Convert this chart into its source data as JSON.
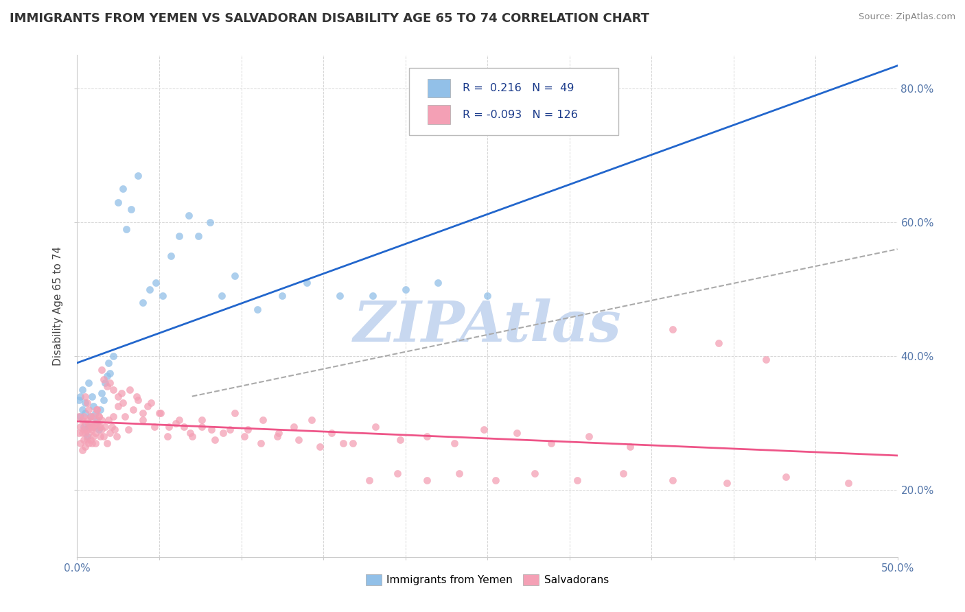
{
  "title": "IMMIGRANTS FROM YEMEN VS SALVADORAN DISABILITY AGE 65 TO 74 CORRELATION CHART",
  "source_text": "Source: ZipAtlas.com",
  "ylabel": "Disability Age 65 to 74",
  "xlim": [
    0.0,
    0.5
  ],
  "ylim": [
    0.1,
    0.85
  ],
  "xtick_positions": [
    0.0,
    0.05,
    0.1,
    0.15,
    0.2,
    0.25,
    0.3,
    0.35,
    0.4,
    0.45,
    0.5
  ],
  "ytick_positions": [
    0.2,
    0.4,
    0.6,
    0.8
  ],
  "legend_blue_r": "0.216",
  "legend_blue_n": "49",
  "legend_pink_r": "-0.093",
  "legend_pink_n": "126",
  "blue_color": "#92C0E8",
  "pink_color": "#F4A0B5",
  "blue_line_color": "#2266CC",
  "pink_line_color": "#EE5588",
  "gray_dash_color": "#AAAAAA",
  "watermark": "ZIPAtlas",
  "watermark_color": "#C8D8F0",
  "tick_color": "#5577AA",
  "grid_color": "#CCCCCC",
  "title_color": "#333333",
  "source_color": "#888888",
  "blue_x": [
    0.001,
    0.002,
    0.002,
    0.003,
    0.003,
    0.004,
    0.005,
    0.005,
    0.006,
    0.007,
    0.007,
    0.008,
    0.009,
    0.01,
    0.011,
    0.012,
    0.013,
    0.014,
    0.015,
    0.016,
    0.017,
    0.018,
    0.019,
    0.02,
    0.022,
    0.025,
    0.028,
    0.03,
    0.033,
    0.037,
    0.04,
    0.044,
    0.048,
    0.052,
    0.057,
    0.062,
    0.068,
    0.074,
    0.081,
    0.088,
    0.096,
    0.11,
    0.125,
    0.14,
    0.16,
    0.18,
    0.2,
    0.22,
    0.25
  ],
  "blue_y": [
    0.335,
    0.31,
    0.34,
    0.32,
    0.35,
    0.295,
    0.315,
    0.33,
    0.28,
    0.295,
    0.36,
    0.31,
    0.34,
    0.325,
    0.315,
    0.305,
    0.29,
    0.32,
    0.345,
    0.335,
    0.36,
    0.37,
    0.39,
    0.375,
    0.4,
    0.63,
    0.65,
    0.59,
    0.62,
    0.67,
    0.48,
    0.5,
    0.51,
    0.49,
    0.55,
    0.58,
    0.61,
    0.58,
    0.6,
    0.49,
    0.52,
    0.47,
    0.49,
    0.51,
    0.49,
    0.49,
    0.5,
    0.51,
    0.49
  ],
  "pink_x": [
    0.001,
    0.001,
    0.002,
    0.002,
    0.003,
    0.003,
    0.003,
    0.004,
    0.004,
    0.004,
    0.005,
    0.005,
    0.005,
    0.006,
    0.006,
    0.006,
    0.007,
    0.007,
    0.007,
    0.008,
    0.008,
    0.009,
    0.009,
    0.01,
    0.01,
    0.011,
    0.011,
    0.012,
    0.012,
    0.013,
    0.013,
    0.014,
    0.015,
    0.015,
    0.016,
    0.017,
    0.018,
    0.019,
    0.02,
    0.021,
    0.022,
    0.023,
    0.024,
    0.025,
    0.027,
    0.029,
    0.031,
    0.034,
    0.037,
    0.04,
    0.043,
    0.047,
    0.051,
    0.055,
    0.06,
    0.065,
    0.07,
    0.076,
    0.082,
    0.089,
    0.096,
    0.104,
    0.113,
    0.122,
    0.132,
    0.143,
    0.155,
    0.168,
    0.182,
    0.197,
    0.213,
    0.23,
    0.248,
    0.268,
    0.289,
    0.312,
    0.337,
    0.363,
    0.391,
    0.42,
    0.005,
    0.006,
    0.007,
    0.008,
    0.009,
    0.01,
    0.011,
    0.012,
    0.013,
    0.014,
    0.015,
    0.016,
    0.018,
    0.02,
    0.022,
    0.025,
    0.028,
    0.032,
    0.036,
    0.04,
    0.045,
    0.05,
    0.056,
    0.062,
    0.069,
    0.076,
    0.084,
    0.093,
    0.102,
    0.112,
    0.123,
    0.135,
    0.148,
    0.162,
    0.178,
    0.195,
    0.213,
    0.233,
    0.255,
    0.279,
    0.305,
    0.333,
    0.363,
    0.396,
    0.432,
    0.47
  ],
  "pink_y": [
    0.285,
    0.31,
    0.27,
    0.295,
    0.26,
    0.285,
    0.305,
    0.275,
    0.29,
    0.31,
    0.265,
    0.285,
    0.3,
    0.275,
    0.29,
    0.305,
    0.27,
    0.285,
    0.3,
    0.275,
    0.295,
    0.27,
    0.29,
    0.28,
    0.295,
    0.27,
    0.285,
    0.3,
    0.32,
    0.31,
    0.295,
    0.28,
    0.305,
    0.29,
    0.28,
    0.295,
    0.27,
    0.305,
    0.285,
    0.295,
    0.31,
    0.29,
    0.28,
    0.325,
    0.345,
    0.31,
    0.29,
    0.32,
    0.335,
    0.305,
    0.325,
    0.295,
    0.315,
    0.28,
    0.3,
    0.295,
    0.28,
    0.305,
    0.29,
    0.285,
    0.315,
    0.29,
    0.305,
    0.28,
    0.295,
    0.305,
    0.285,
    0.27,
    0.295,
    0.275,
    0.28,
    0.27,
    0.29,
    0.285,
    0.27,
    0.28,
    0.265,
    0.44,
    0.42,
    0.395,
    0.34,
    0.33,
    0.32,
    0.31,
    0.295,
    0.31,
    0.3,
    0.32,
    0.31,
    0.295,
    0.38,
    0.365,
    0.355,
    0.36,
    0.35,
    0.34,
    0.33,
    0.35,
    0.34,
    0.315,
    0.33,
    0.315,
    0.295,
    0.305,
    0.285,
    0.295,
    0.275,
    0.29,
    0.28,
    0.27,
    0.285,
    0.275,
    0.265,
    0.27,
    0.215,
    0.225,
    0.215,
    0.225,
    0.215,
    0.225,
    0.215,
    0.225,
    0.215,
    0.21,
    0.22,
    0.21
  ]
}
